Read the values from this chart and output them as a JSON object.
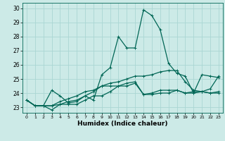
{
  "xlabel": "Humidex (Indice chaleur)",
  "xlim": [
    -0.5,
    23.5
  ],
  "ylim": [
    22.6,
    30.4
  ],
  "yticks": [
    23,
    24,
    25,
    26,
    27,
    28,
    29,
    30
  ],
  "xticks": [
    0,
    1,
    2,
    3,
    4,
    5,
    6,
    7,
    8,
    9,
    10,
    11,
    12,
    13,
    14,
    15,
    16,
    17,
    18,
    19,
    20,
    21,
    22,
    23
  ],
  "background_color": "#cceae7",
  "grid_color": "#aad6d3",
  "line_color": "#006655",
  "line_width": 0.9,
  "marker": "+",
  "marker_size": 3.5,
  "series": [
    [
      23.5,
      23.1,
      23.1,
      24.2,
      23.8,
      23.3,
      23.4,
      23.8,
      23.5,
      25.3,
      25.8,
      28.0,
      27.2,
      27.2,
      29.9,
      29.5,
      28.5,
      26.1,
      25.4,
      25.2,
      24.0,
      25.3,
      25.2,
      25.1
    ],
    [
      23.5,
      23.1,
      23.1,
      23.1,
      23.2,
      23.2,
      23.2,
      23.5,
      23.8,
      23.8,
      24.1,
      24.5,
      24.5,
      24.7,
      23.9,
      24.0,
      24.2,
      24.2,
      24.2,
      24.0,
      24.1,
      24.1,
      24.0,
      24.1
    ],
    [
      23.5,
      23.1,
      23.1,
      22.8,
      23.2,
      23.4,
      23.5,
      23.8,
      24.1,
      24.5,
      24.5,
      24.5,
      24.7,
      24.8,
      23.9,
      23.9,
      24.0,
      24.0,
      24.2,
      24.0,
      24.0,
      24.1,
      24.0,
      24.0
    ],
    [
      23.5,
      23.1,
      23.1,
      23.1,
      23.4,
      23.6,
      23.8,
      24.1,
      24.2,
      24.5,
      24.7,
      24.8,
      25.0,
      25.2,
      25.2,
      25.3,
      25.5,
      25.6,
      25.6,
      24.8,
      24.2,
      24.1,
      24.3,
      25.2
    ]
  ],
  "xlabel_fontsize": 6.5,
  "tick_fontsize": 5.5,
  "xlabel_fontweight": "bold"
}
